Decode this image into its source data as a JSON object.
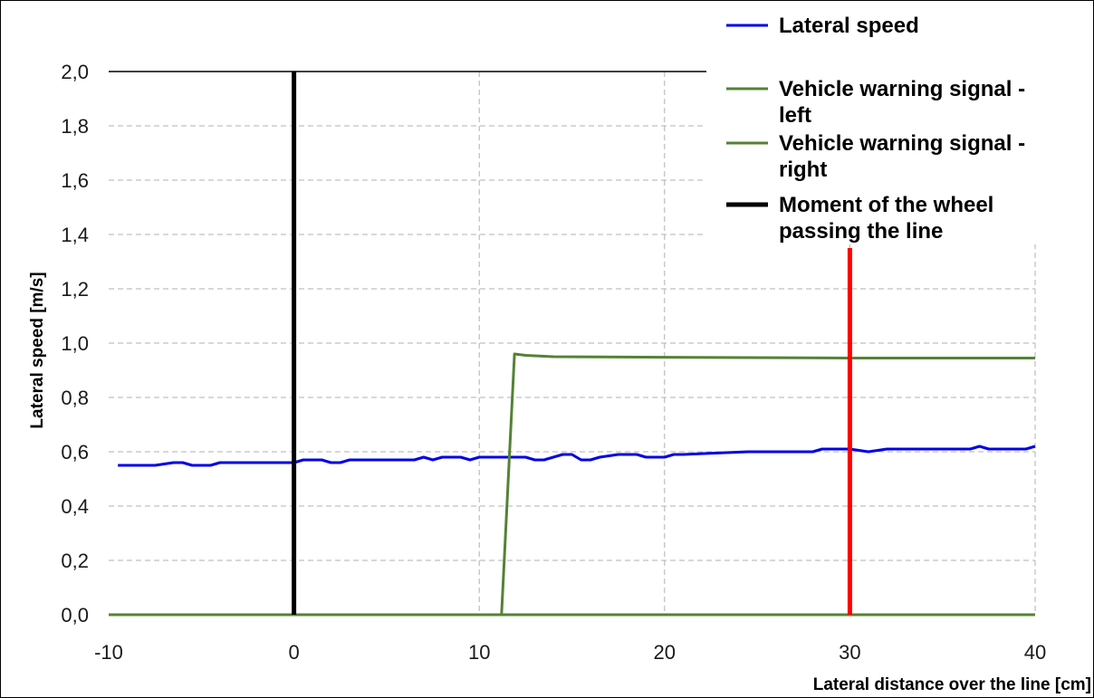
{
  "chart_data": {
    "type": "line",
    "xlabel": "Lateral distance over the line  [cm]",
    "ylabel": "Lateral speed [m/s]",
    "xlim": [
      -10,
      40
    ],
    "ylim": [
      0,
      2
    ],
    "x_ticks": [
      -10,
      0,
      10,
      20,
      30,
      40
    ],
    "x_tick_labels": [
      "-10",
      "0",
      "10",
      "20",
      "30",
      "40"
    ],
    "y_ticks": [
      0,
      0.2,
      0.4,
      0.6,
      0.8,
      1.0,
      1.2,
      1.4,
      1.6,
      1.8,
      2.0
    ],
    "y_tick_labels": [
      "0,0",
      "0,2",
      "0,4",
      "0,6",
      "0,8",
      "1,0",
      "1,2",
      "1,4",
      "1,6",
      "1,8",
      "2,0"
    ],
    "grid": true,
    "legend_position": "top-right",
    "series": [
      {
        "name": "Lateral speed",
        "color": "#0000e6",
        "x": [
          -9.5,
          -7.5,
          -6.5,
          -6.0,
          -5.5,
          -4.5,
          -4.0,
          -3.0,
          0.0,
          0.5,
          1.5,
          2.0,
          2.5,
          3.0,
          5.5,
          6.5,
          7.0,
          7.5,
          8.0,
          9.0,
          9.5,
          10.0,
          12.5,
          13.0,
          13.5,
          14.0,
          14.5,
          15.0,
          15.5,
          16.0,
          16.5,
          17.5,
          18.5,
          19.0,
          20.0,
          20.5,
          21.0,
          24.5,
          28.0,
          28.5,
          30.0,
          31.0,
          32.0,
          36.5,
          37.0,
          37.5,
          38.0,
          39.5,
          40.0
        ],
        "values": [
          0.55,
          0.55,
          0.56,
          0.56,
          0.55,
          0.55,
          0.56,
          0.56,
          0.56,
          0.57,
          0.57,
          0.56,
          0.56,
          0.57,
          0.57,
          0.57,
          0.58,
          0.57,
          0.58,
          0.58,
          0.57,
          0.58,
          0.58,
          0.57,
          0.57,
          0.58,
          0.59,
          0.59,
          0.57,
          0.57,
          0.58,
          0.59,
          0.59,
          0.58,
          0.58,
          0.59,
          0.59,
          0.6,
          0.6,
          0.61,
          0.61,
          0.6,
          0.61,
          0.61,
          0.62,
          0.61,
          0.61,
          0.61,
          0.62
        ],
        "width": 3
      },
      {
        "name": "Vehicle warning signal - left",
        "color": "#548235",
        "x": [
          -10,
          11.2,
          11.9,
          12.5,
          14.0,
          20.0,
          30.0,
          40.0
        ],
        "values": [
          0.0,
          0.0,
          0.96,
          0.955,
          0.95,
          0.948,
          0.945,
          0.945
        ],
        "width": 3
      },
      {
        "name": "Vehicle warning signal - right",
        "color": "#548235",
        "x": [
          -10,
          40
        ],
        "values": [
          0.0,
          0.0
        ],
        "width": 3
      },
      {
        "name": "Moment of the wheel passing the line",
        "color": "#000000",
        "x": [
          0,
          0
        ],
        "values": [
          0,
          2
        ],
        "width": 5
      },
      {
        "color": "#ff0000",
        "x": [
          30,
          30
        ],
        "values": [
          0,
          1.35
        ],
        "width": 5
      }
    ],
    "legend": [
      {
        "lines": [
          "Lateral speed"
        ],
        "color": "#0000e6",
        "stroke": 3
      },
      {
        "lines": [
          "Vehicle warning signal -",
          "left"
        ],
        "color": "#548235",
        "stroke": 3
      },
      {
        "lines": [
          "Vehicle warning signal -",
          "right"
        ],
        "color": "#548235",
        "stroke": 3
      },
      {
        "lines": [
          "Moment of the wheel",
          "passing the line"
        ],
        "color": "#000000",
        "stroke": 5
      }
    ]
  }
}
